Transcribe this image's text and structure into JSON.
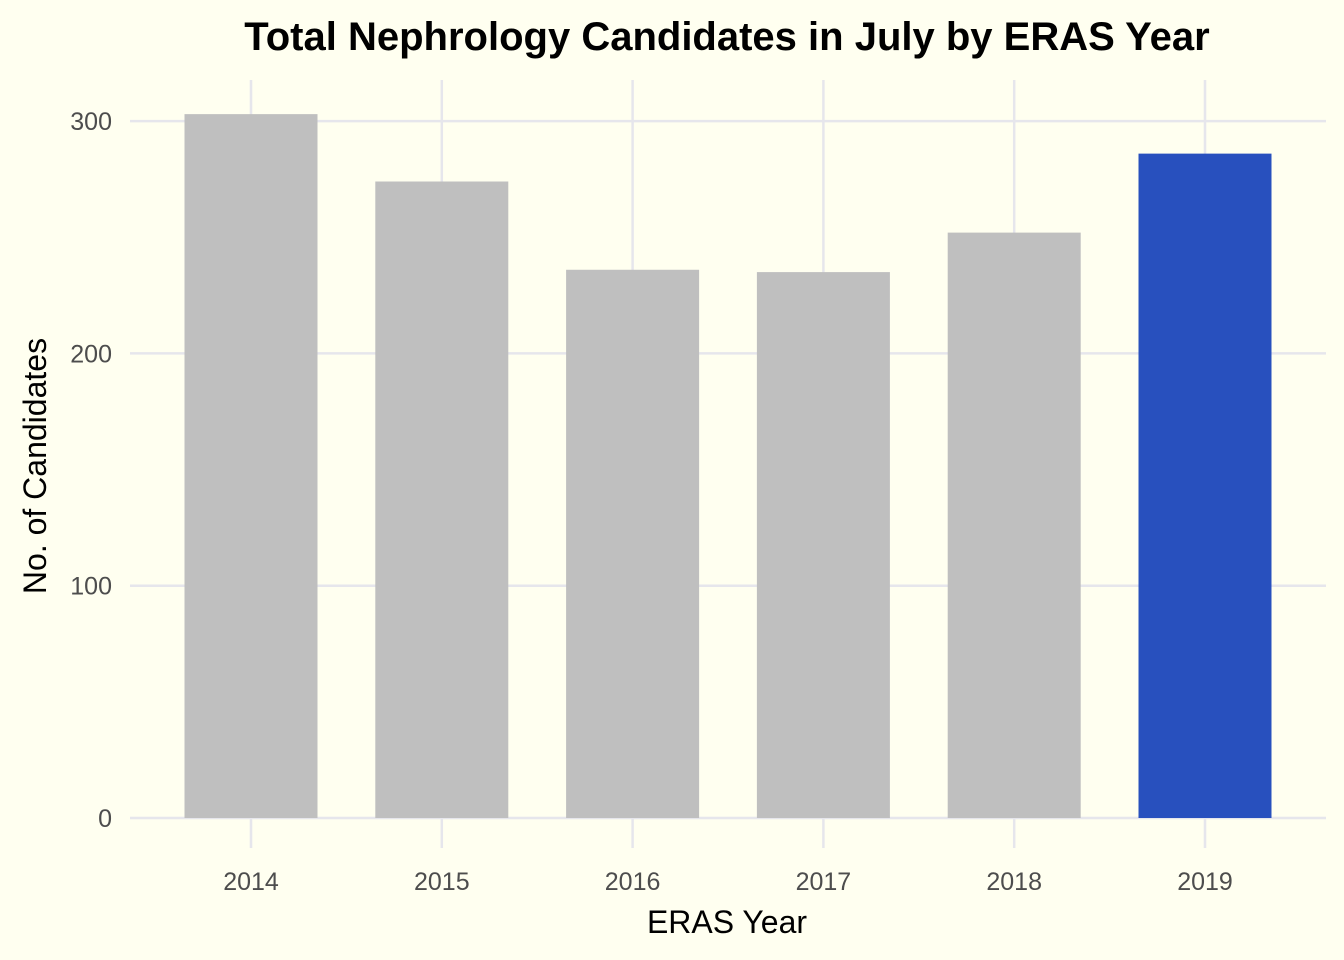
{
  "chart_data": {
    "type": "bar",
    "title": "Total Nephrology Candidates in July by ERAS Year",
    "xlabel": "ERAS Year",
    "ylabel": "No. of Candidates",
    "categories": [
      "2014",
      "2015",
      "2016",
      "2017",
      "2018",
      "2019"
    ],
    "values": [
      303,
      274,
      236,
      235,
      252,
      286
    ],
    "ylim": [
      0,
      300
    ],
    "yticks": [
      0,
      100,
      200,
      300
    ],
    "grid": true,
    "legend": "none",
    "colors": {
      "default_bar": "#BFBFBF",
      "highlight_bar": "#2850BE",
      "background": "#FFFFF0"
    },
    "highlight_category": "2019"
  }
}
